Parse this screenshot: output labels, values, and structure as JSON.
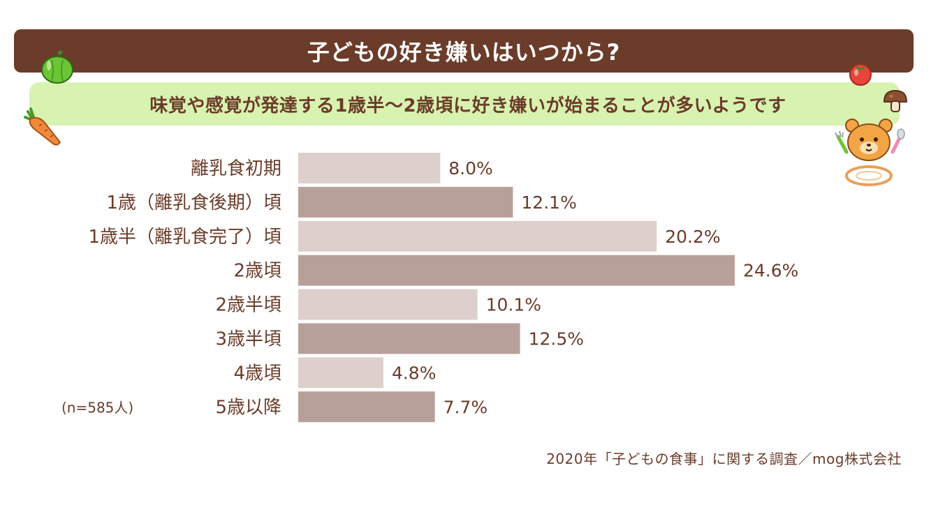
{
  "header": {
    "title": "子どもの好き嫌いはいつから?",
    "subtitle": "味覚や感覚が発達する1歳半～2歳頃に好き嫌いが始まることが多いようです"
  },
  "footer": {
    "source": "2020年「子どもの食事」に関する調査／mog株式会社",
    "sample_note": "(n=585人)"
  },
  "colors": {
    "title_bg": "#6b3c2a",
    "subtitle_bg": "#d8f2b0",
    "text": "#6b3c2a",
    "bar_light": "#ddd0cc",
    "bar_dark": "#b8a09a"
  },
  "icons": [
    "green-pepper-icon",
    "carrot-icon",
    "tomato-icon",
    "mushroom-icon",
    "bear-mascot-icon"
  ],
  "chart_data": {
    "type": "bar",
    "orientation": "horizontal",
    "categories": [
      "離乳食初期",
      "1歳（離乳食後期）頃",
      "1歳半（離乳食完了）頃",
      "2歳頃",
      "2歳半頃",
      "3歳半頃",
      "4歳頃",
      "5歳以降"
    ],
    "values": [
      8.0,
      12.1,
      20.2,
      24.6,
      10.1,
      12.5,
      4.8,
      7.7
    ],
    "value_labels": [
      "8.0%",
      "12.1%",
      "20.2%",
      "24.6%",
      "10.1%",
      "12.5%",
      "4.8%",
      "7.7%"
    ],
    "unit": "%",
    "xlim": [
      0,
      24.6
    ],
    "grid": false,
    "legend": "none"
  }
}
